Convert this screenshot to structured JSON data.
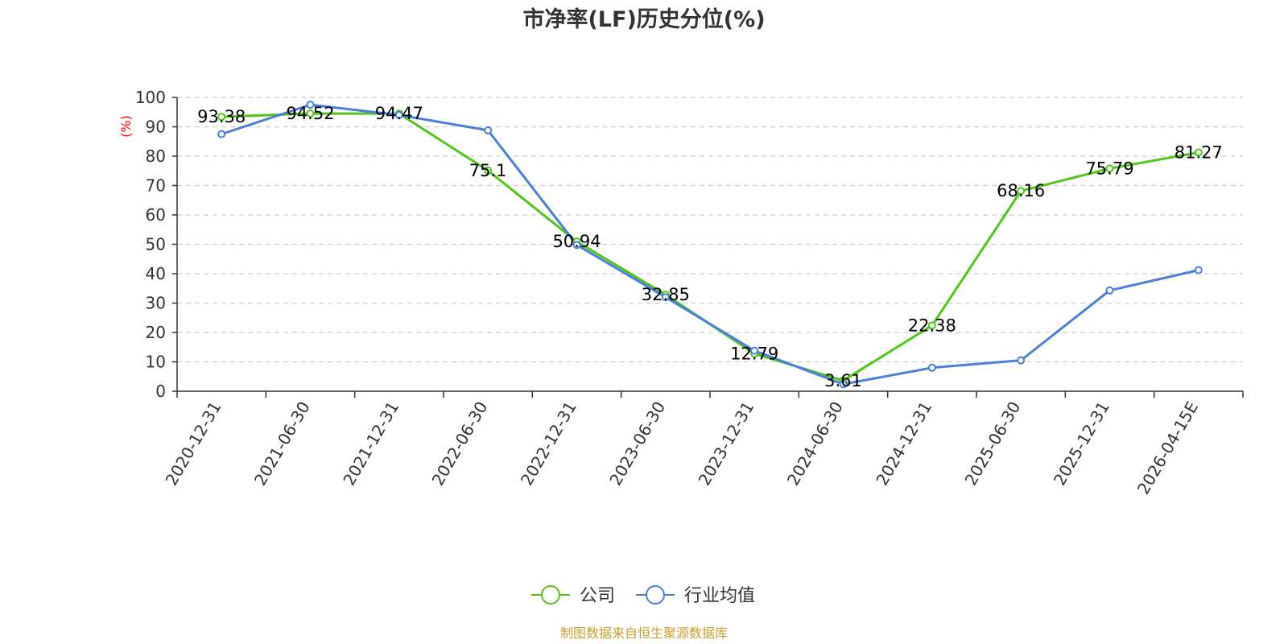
{
  "chart_data": {
    "type": "line",
    "title": "市净率(LF)历史分位(%)",
    "ylabel": "(%)",
    "ylim": [
      0,
      100
    ],
    "yticks": [
      0,
      10,
      20,
      30,
      40,
      50,
      60,
      70,
      80,
      90,
      100
    ],
    "categories": [
      "2020-12-31",
      "2021-06-30",
      "2021-12-31",
      "2022-06-30",
      "2022-12-31",
      "2023-06-30",
      "2023-12-31",
      "2024-06-30",
      "2024-12-31",
      "2025-06-30",
      "2025-12-31",
      "2026-04-15E"
    ],
    "series": [
      {
        "name": "公司",
        "color": "#52c41a",
        "values": [
          93.38,
          94.52,
          94.47,
          75.1,
          50.94,
          32.85,
          12.79,
          3.61,
          22.38,
          68.16,
          75.79,
          81.27
        ],
        "labels": [
          "93.38",
          "94.52",
          "94.47",
          "75.1",
          "50.94",
          "32.85",
          "12.79",
          "3.61",
          "22.38",
          "68.16",
          "75.79",
          "81.27"
        ]
      },
      {
        "name": "行业均值",
        "color": "#4a7fdc",
        "values": [
          87.5,
          97.5,
          94.0,
          88.8,
          49.8,
          32.0,
          13.8,
          2.4,
          8.0,
          10.5,
          34.3,
          41.2
        ]
      }
    ],
    "grid": true,
    "legend_position": "bottom-center",
    "source": "制图数据来自恒生聚源数据库"
  }
}
